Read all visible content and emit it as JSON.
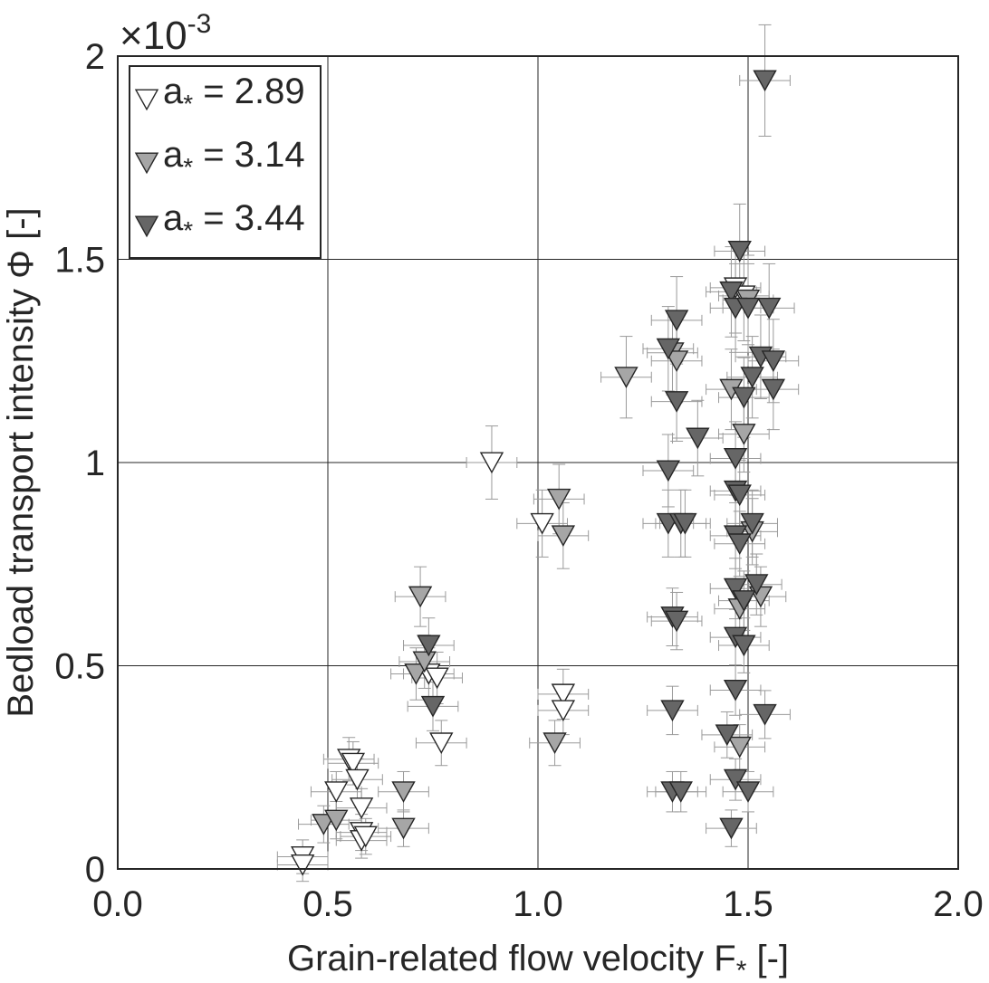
{
  "chart_data": {
    "type": "scatter",
    "xlabel": "Grain-related flow velocity F",
    "xlabel_sub": "*",
    "xlabel_suffix": " [-]",
    "ylabel": "Bedload transport intensity Φ [-]",
    "y_exponent_label": "×10",
    "y_exponent_power": "-3",
    "xlim": [
      0,
      2
    ],
    "ylim": [
      0,
      2
    ],
    "xticks": [
      "0.0",
      "0.5",
      "1.0",
      "1.5",
      "2.0"
    ],
    "yticks": [
      "0",
      "0.5",
      "1",
      "1.5",
      "2"
    ],
    "xtick_values": [
      0,
      0.5,
      1.0,
      1.5,
      2.0
    ],
    "ytick_values": [
      0,
      0.5,
      1,
      1.5,
      2
    ],
    "grid": true,
    "legend_position": "top-left",
    "series": [
      {
        "name": "a* = 2.89",
        "legend_label": "a",
        "legend_sub": "*",
        "legend_value": " = 2.89",
        "fill": "#ffffff",
        "points": [
          [
            0.44,
            0.03
          ],
          [
            0.44,
            0.01
          ],
          [
            0.52,
            0.19
          ],
          [
            0.55,
            0.27
          ],
          [
            0.56,
            0.26
          ],
          [
            0.57,
            0.22
          ],
          [
            0.58,
            0.15
          ],
          [
            0.58,
            0.09
          ],
          [
            0.58,
            0.07
          ],
          [
            0.59,
            0.08
          ],
          [
            0.74,
            0.48
          ],
          [
            0.76,
            0.47
          ],
          [
            0.77,
            0.31
          ],
          [
            0.89,
            1.0
          ],
          [
            1.01,
            0.85
          ],
          [
            1.06,
            0.43
          ],
          [
            1.06,
            0.39
          ],
          [
            1.47,
            1.43
          ],
          [
            1.49,
            1.41
          ]
        ]
      },
      {
        "name": "a* = 3.14",
        "legend_label": "a",
        "legend_sub": "*",
        "legend_value": " = 3.14",
        "fill": "#a6a6a6",
        "points": [
          [
            0.49,
            0.11
          ],
          [
            0.52,
            0.12
          ],
          [
            0.68,
            0.19
          ],
          [
            0.68,
            0.1
          ],
          [
            0.71,
            0.48
          ],
          [
            0.72,
            0.67
          ],
          [
            0.73,
            0.51
          ],
          [
            1.04,
            0.31
          ],
          [
            1.05,
            0.91
          ],
          [
            1.06,
            0.82
          ],
          [
            1.21,
            1.21
          ],
          [
            1.32,
            1.27
          ],
          [
            1.33,
            1.25
          ],
          [
            1.46,
            1.18
          ],
          [
            1.48,
            0.3
          ],
          [
            1.48,
            0.64
          ],
          [
            1.49,
            1.07
          ],
          [
            1.5,
            1.4
          ],
          [
            1.51,
            0.83
          ],
          [
            1.53,
            0.67
          ]
        ]
      },
      {
        "name": "a* = 3.44",
        "legend_label": "a",
        "legend_sub": "*",
        "legend_value": " = 3.44",
        "fill": "#666666",
        "points": [
          [
            0.74,
            0.55
          ],
          [
            0.75,
            0.4
          ],
          [
            1.31,
            1.28
          ],
          [
            1.31,
            0.98
          ],
          [
            1.31,
            0.85
          ],
          [
            1.32,
            0.62
          ],
          [
            1.32,
            0.39
          ],
          [
            1.32,
            0.19
          ],
          [
            1.33,
            1.35
          ],
          [
            1.33,
            1.15
          ],
          [
            1.33,
            0.61
          ],
          [
            1.34,
            0.85
          ],
          [
            1.34,
            0.19
          ],
          [
            1.35,
            0.85
          ],
          [
            1.38,
            1.06
          ],
          [
            1.45,
            0.33
          ],
          [
            1.46,
            0.1
          ],
          [
            1.46,
            1.42
          ],
          [
            1.47,
            1.38
          ],
          [
            1.47,
            1.01
          ],
          [
            1.47,
            0.93
          ],
          [
            1.47,
            0.82
          ],
          [
            1.47,
            0.69
          ],
          [
            1.47,
            0.57
          ],
          [
            1.47,
            0.44
          ],
          [
            1.47,
            0.22
          ],
          [
            1.48,
            1.52
          ],
          [
            1.48,
            0.92
          ],
          [
            1.48,
            0.8
          ],
          [
            1.49,
            1.16
          ],
          [
            1.49,
            0.66
          ],
          [
            1.49,
            0.55
          ],
          [
            1.5,
            1.38
          ],
          [
            1.5,
            0.19
          ],
          [
            1.51,
            1.21
          ],
          [
            1.51,
            0.85
          ],
          [
            1.52,
            0.7
          ],
          [
            1.53,
            1.26
          ],
          [
            1.54,
            1.94
          ],
          [
            1.54,
            0.38
          ],
          [
            1.55,
            1.38
          ],
          [
            1.56,
            1.25
          ],
          [
            1.56,
            1.18
          ]
        ]
      }
    ]
  }
}
